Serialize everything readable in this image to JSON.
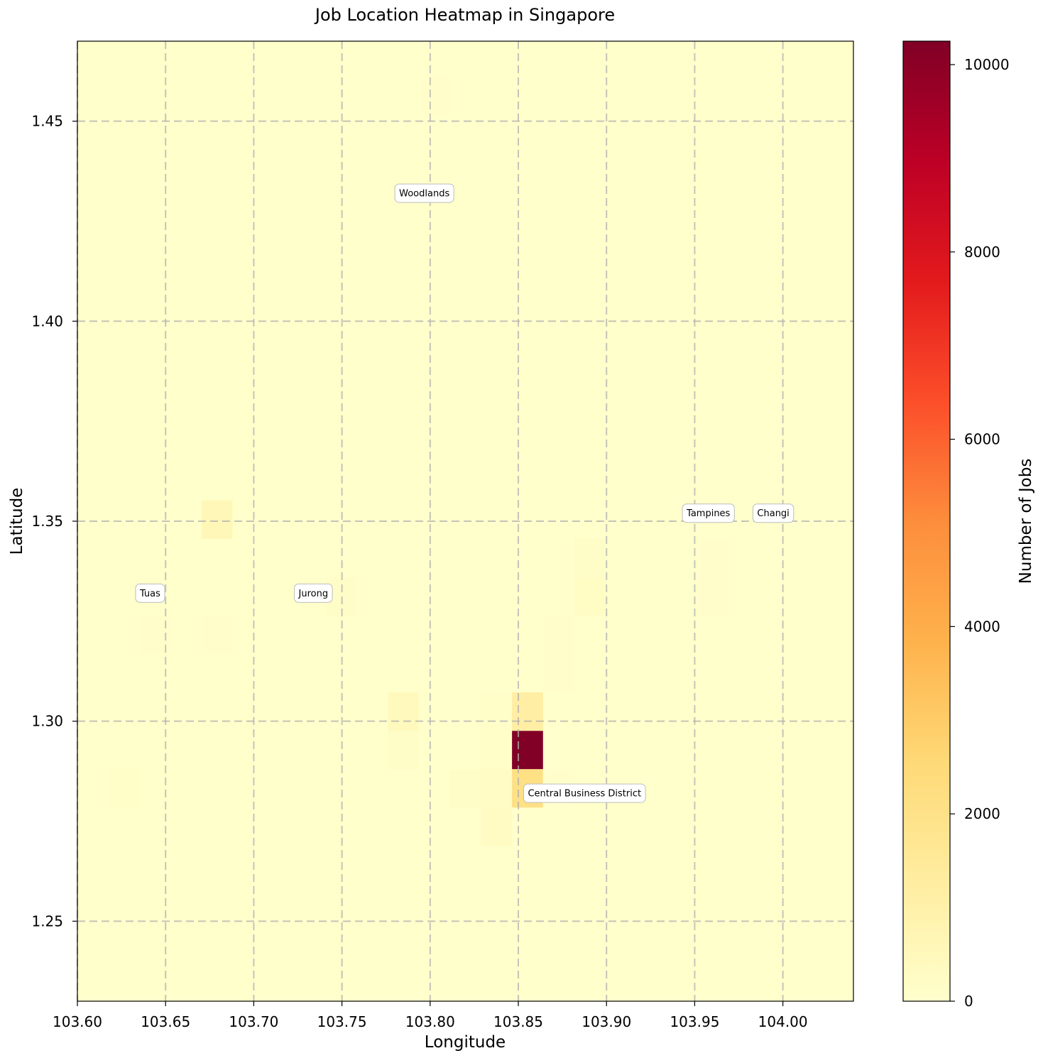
{
  "chart_data": {
    "type": "heatmap",
    "title": "Job Location Heatmap in Singapore",
    "xlabel": "Longitude",
    "ylabel": "Latitude",
    "xlim": [
      103.6,
      104.04
    ],
    "ylim": [
      1.23,
      1.47
    ],
    "x_ticks": [
      103.6,
      103.65,
      103.7,
      103.75,
      103.8,
      103.85,
      103.9,
      103.95,
      104.0
    ],
    "x_tick_labels": [
      "103.60",
      "103.65",
      "103.70",
      "103.75",
      "103.80",
      "103.85",
      "103.90",
      "103.95",
      "104.00"
    ],
    "y_ticks": [
      1.25,
      1.3,
      1.35,
      1.4,
      1.45
    ],
    "y_tick_labels": [
      "1.25",
      "1.30",
      "1.35",
      "1.40",
      "1.45"
    ],
    "grid": true,
    "colormap": "YlOrRd",
    "colors": [
      "#ffffcc",
      "#ffeda0",
      "#fed976",
      "#feb24c",
      "#fd8d3c",
      "#fc4e2a",
      "#e31a1c",
      "#bd0026",
      "#800026"
    ],
    "colorbar": {
      "label": "Number of Jobs",
      "min": 0,
      "max": 10250,
      "ticks": [
        0,
        2000,
        4000,
        6000,
        8000,
        10000
      ],
      "tick_labels": [
        "0",
        "2000",
        "4000",
        "6000",
        "8000",
        "10000"
      ]
    },
    "bin_size": {
      "lon": 0.0176,
      "lat": 0.0096
    },
    "cells": [
      {
        "lon": 103.6704,
        "lat": 1.3456,
        "value": 600
      },
      {
        "lon": 103.8464,
        "lat": 1.288,
        "value": 10250
      },
      {
        "lon": 103.8464,
        "lat": 1.2784,
        "value": 2100
      },
      {
        "lon": 103.8464,
        "lat": 1.2976,
        "value": 1200
      },
      {
        "lon": 103.776,
        "lat": 1.2976,
        "value": 450
      },
      {
        "lon": 103.8288,
        "lat": 1.2688,
        "value": 250
      },
      {
        "lon": 103.8288,
        "lat": 1.2784,
        "value": 180
      },
      {
        "lon": 103.8112,
        "lat": 1.2784,
        "value": 150
      },
      {
        "lon": 103.8288,
        "lat": 1.288,
        "value": 120
      },
      {
        "lon": 103.8288,
        "lat": 1.2976,
        "value": 100
      },
      {
        "lon": 103.776,
        "lat": 1.288,
        "value": 150
      },
      {
        "lon": 103.8816,
        "lat": 1.3264,
        "value": 220
      },
      {
        "lon": 103.8816,
        "lat": 1.336,
        "value": 160
      },
      {
        "lon": 103.7408,
        "lat": 1.3264,
        "value": 140
      },
      {
        "lon": 103.6176,
        "lat": 1.2784,
        "value": 130
      },
      {
        "lon": 103.7936,
        "lat": 1.4512,
        "value": 60
      },
      {
        "lon": 103.864,
        "lat": 1.3072,
        "value": 60
      },
      {
        "lon": 103.864,
        "lat": 1.3168,
        "value": 50
      },
      {
        "lon": 103.864,
        "lat": 1.2784,
        "value": 40
      },
      {
        "lon": 103.6704,
        "lat": 1.3168,
        "value": 70
      },
      {
        "lon": 103.6352,
        "lat": 1.3168,
        "value": 40
      },
      {
        "lon": 103.952,
        "lat": 1.3264,
        "value": 50
      },
      {
        "lon": 103.952,
        "lat": 1.336,
        "value": 40
      },
      {
        "lon": 103.8288,
        "lat": 1.3552,
        "value": 30
      },
      {
        "lon": 103.8816,
        "lat": 1.3552,
        "value": 30
      },
      {
        "lon": 103.9344,
        "lat": 1.3744,
        "value": 25
      },
      {
        "lon": 103.7232,
        "lat": 1.3072,
        "value": 30
      }
    ],
    "annotations": [
      {
        "text": "Woodlands",
        "lon": 103.78,
        "lat": 1.432
      },
      {
        "text": "Tampines",
        "lon": 103.943,
        "lat": 1.352
      },
      {
        "text": "Changi",
        "lon": 103.983,
        "lat": 1.352
      },
      {
        "text": "Tuas",
        "lon": 103.633,
        "lat": 1.332
      },
      {
        "text": "Jurong",
        "lon": 103.723,
        "lat": 1.332
      },
      {
        "text": "Central Business District",
        "lon": 103.853,
        "lat": 1.282
      }
    ]
  }
}
